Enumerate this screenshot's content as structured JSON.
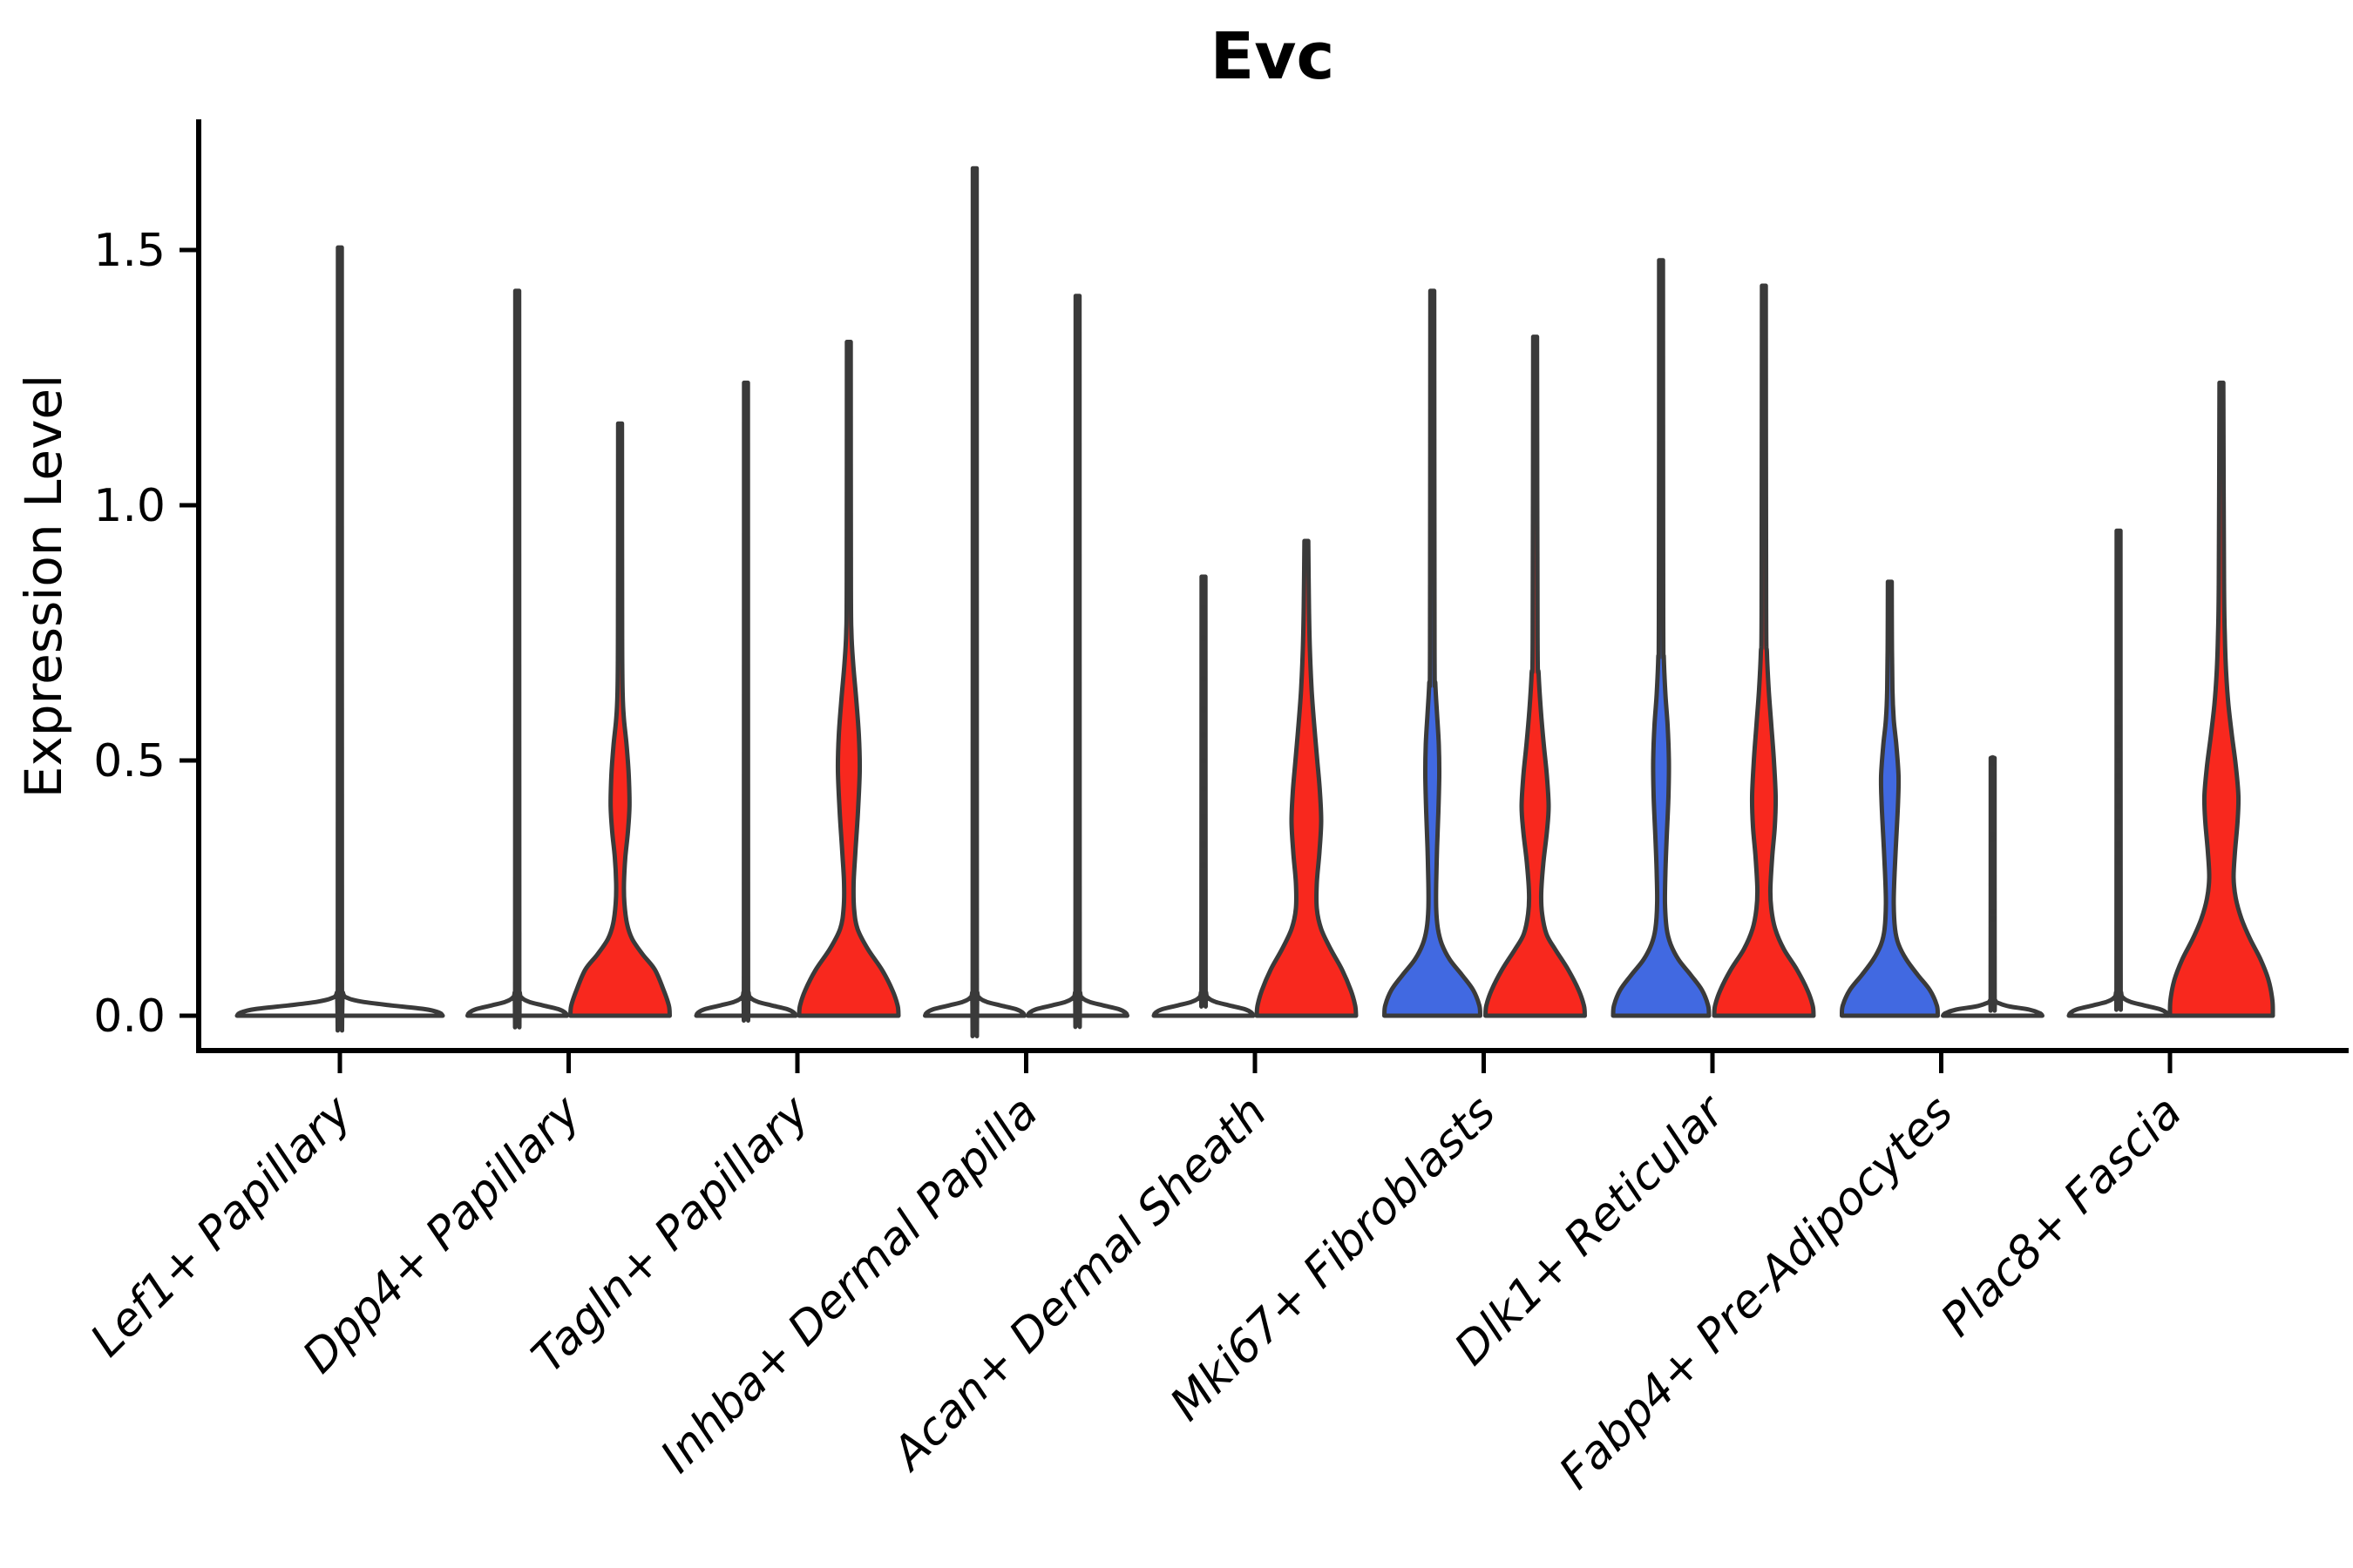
{
  "title": "Evc",
  "axes": {
    "ylabel": "Expression Level",
    "yticks": [
      {
        "label": "0.0",
        "value": 0.0
      },
      {
        "label": "0.5",
        "value": 0.5
      },
      {
        "label": "1.0",
        "value": 1.0
      },
      {
        "label": "1.5",
        "value": 1.5
      }
    ]
  },
  "colors": {
    "red": "#f8281e",
    "blue": "#4169e1",
    "white": "#ffffff",
    "outline": "#3a3a3a",
    "axis": "#000000"
  },
  "chart_data": {
    "type": "violin",
    "title": "Evc",
    "xlabel": "",
    "ylabel": "Expression Level",
    "ylim": [
      -0.07,
      1.82
    ],
    "yticks": [
      0.0,
      0.5,
      1.0,
      1.5
    ],
    "grid": false,
    "legend": "none",
    "categories": [
      "Lef1+ Papillary",
      "Dpp4+ Papillary",
      "Tagln+ Papillary",
      "Inhba+ Dermal Papilla",
      "Acan+ Dermal Sheath",
      "Mki67+ Fibroblasts",
      "Dlk1+ Reticular",
      "Fabp4+ Pre-Adipocytes",
      "Plac8+ Fascia"
    ],
    "violins": [
      {
        "category": "Lef1+ Papillary",
        "group": "single",
        "color": "white",
        "max": 1.505,
        "profile": [
          [
            0,
            118
          ],
          [
            0.006,
            114
          ],
          [
            0.013,
            97
          ],
          [
            0.02,
            60
          ],
          [
            0.027,
            27
          ],
          [
            0.034,
            10
          ],
          [
            0.045,
            3.5
          ],
          [
            0.09,
            2.4
          ],
          [
            1.505,
            2.2
          ]
        ],
        "points": []
      },
      {
        "category": "Dpp4+ Papillary",
        "group": "left",
        "color": "white",
        "max": 1.42,
        "profile": [
          [
            0,
            57
          ],
          [
            0.006,
            55
          ],
          [
            0.013,
            47
          ],
          [
            0.02,
            30
          ],
          [
            0.027,
            14
          ],
          [
            0.034,
            6
          ],
          [
            0.045,
            3
          ],
          [
            0.09,
            2.4
          ],
          [
            1.42,
            2.2
          ]
        ],
        "points": []
      },
      {
        "category": "Dpp4+ Papillary",
        "group": "right",
        "color": "red",
        "max": 1.16,
        "profile": [
          [
            0,
            57
          ],
          [
            0.02,
            56
          ],
          [
            0.05,
            50
          ],
          [
            0.09,
            40
          ],
          [
            0.12,
            26
          ],
          [
            0.15,
            14
          ],
          [
            0.18,
            8
          ],
          [
            0.22,
            5
          ],
          [
            0.26,
            4.5
          ],
          [
            0.31,
            6
          ],
          [
            0.36,
            9
          ],
          [
            0.41,
            10.8
          ],
          [
            0.47,
            10
          ],
          [
            0.53,
            7.5
          ],
          [
            0.58,
            4.5
          ],
          [
            0.63,
            3
          ],
          [
            0.75,
            2.4
          ],
          [
            1.16,
            2.2
          ]
        ],
        "points": []
      },
      {
        "category": "Tagln+ Papillary",
        "group": "left",
        "color": "white",
        "max": 1.24,
        "profile": [
          [
            0,
            57
          ],
          [
            0.006,
            55
          ],
          [
            0.013,
            47
          ],
          [
            0.02,
            30
          ],
          [
            0.027,
            14
          ],
          [
            0.034,
            6
          ],
          [
            0.045,
            3
          ],
          [
            0.09,
            2.4
          ],
          [
            1.24,
            2.2
          ]
        ],
        "points": []
      },
      {
        "category": "Tagln+ Papillary",
        "group": "right",
        "color": "red",
        "max": 1.32,
        "profile": [
          [
            0,
            57
          ],
          [
            0.02,
            56
          ],
          [
            0.05,
            50
          ],
          [
            0.09,
            38
          ],
          [
            0.13,
            22
          ],
          [
            0.17,
            10
          ],
          [
            0.21,
            6
          ],
          [
            0.26,
            5.5
          ],
          [
            0.32,
            7.5
          ],
          [
            0.4,
            10.5
          ],
          [
            0.48,
            12.5
          ],
          [
            0.55,
            11.5
          ],
          [
            0.62,
            8.5
          ],
          [
            0.69,
            5
          ],
          [
            0.75,
            3
          ],
          [
            0.85,
            2.4
          ],
          [
            1.32,
            2.2
          ]
        ],
        "points": []
      },
      {
        "category": "Inhba+ Dermal Papilla",
        "group": "left",
        "color": "white",
        "max": 1.66,
        "profile": [
          [
            0,
            57
          ],
          [
            0.006,
            55
          ],
          [
            0.013,
            47
          ],
          [
            0.02,
            30
          ],
          [
            0.027,
            14
          ],
          [
            0.034,
            6
          ],
          [
            0.045,
            3
          ],
          [
            0.09,
            2.4
          ],
          [
            1.66,
            2.2
          ]
        ],
        "points": []
      },
      {
        "category": "Inhba+ Dermal Papilla",
        "group": "right",
        "color": "white",
        "max": 1.41,
        "profile": [
          [
            0,
            57
          ],
          [
            0.006,
            55
          ],
          [
            0.013,
            47
          ],
          [
            0.02,
            30
          ],
          [
            0.027,
            14
          ],
          [
            0.034,
            6
          ],
          [
            0.045,
            3
          ],
          [
            0.09,
            2.4
          ],
          [
            1.41,
            2.2
          ]
        ],
        "points": []
      },
      {
        "category": "Acan+ Dermal Sheath",
        "group": "left",
        "color": "white",
        "max": 0.86,
        "profile": [
          [
            0,
            57
          ],
          [
            0.006,
            55
          ],
          [
            0.013,
            47
          ],
          [
            0.02,
            30
          ],
          [
            0.027,
            14
          ],
          [
            0.034,
            6
          ],
          [
            0.045,
            3
          ],
          [
            0.09,
            2.4
          ],
          [
            0.86,
            2.2
          ]
        ],
        "points": [
          0.8,
          0.74,
          0.66,
          0.6,
          0.55,
          0.5,
          0.445,
          0.39,
          0.335,
          0.295
        ]
      },
      {
        "category": "Acan+ Dermal Sheath",
        "group": "right",
        "color": "red",
        "max": 0.93,
        "profile": [
          [
            0,
            57
          ],
          [
            0.02,
            56
          ],
          [
            0.05,
            51
          ],
          [
            0.09,
            41
          ],
          [
            0.13,
            28
          ],
          [
            0.17,
            17
          ],
          [
            0.21,
            12
          ],
          [
            0.26,
            12
          ],
          [
            0.32,
            15
          ],
          [
            0.38,
            17
          ],
          [
            0.44,
            15.5
          ],
          [
            0.5,
            12.5
          ],
          [
            0.57,
            9
          ],
          [
            0.64,
            6
          ],
          [
            0.72,
            4
          ],
          [
            0.8,
            3
          ],
          [
            0.93,
            2.2
          ]
        ],
        "points": []
      },
      {
        "category": "Mki67+ Fibroblasts",
        "group": "left",
        "color": "blue",
        "max": 1.42,
        "profile": [
          [
            0,
            55
          ],
          [
            0.02,
            54
          ],
          [
            0.05,
            47
          ],
          [
            0.08,
            34
          ],
          [
            0.11,
            20
          ],
          [
            0.14,
            11
          ],
          [
            0.17,
            6.5
          ],
          [
            0.21,
            4.5
          ],
          [
            0.26,
            4.5
          ],
          [
            0.33,
            5.5
          ],
          [
            0.4,
            7
          ],
          [
            0.47,
            8
          ],
          [
            0.53,
            7.5
          ],
          [
            0.59,
            5.5
          ],
          [
            0.65,
            3.5
          ],
          [
            0.72,
            2.6
          ],
          [
            1.42,
            2.2
          ]
        ],
        "points": []
      },
      {
        "category": "Mki67+ Fibroblasts",
        "group": "right",
        "color": "red",
        "max": 1.33,
        "profile": [
          [
            0,
            57
          ],
          [
            0.02,
            56
          ],
          [
            0.05,
            50
          ],
          [
            0.09,
            38
          ],
          [
            0.13,
            23
          ],
          [
            0.16,
            13
          ],
          [
            0.2,
            8
          ],
          [
            0.24,
            7
          ],
          [
            0.3,
            9.5
          ],
          [
            0.36,
            13.5
          ],
          [
            0.41,
            15.5
          ],
          [
            0.47,
            13.5
          ],
          [
            0.53,
            10
          ],
          [
            0.6,
            6.5
          ],
          [
            0.67,
            4
          ],
          [
            0.74,
            2.8
          ],
          [
            1.33,
            2.2
          ]
        ],
        "points": []
      },
      {
        "category": "Dlk1+ Reticular",
        "group": "left",
        "color": "blue",
        "max": 1.48,
        "profile": [
          [
            0,
            55
          ],
          [
            0.02,
            54
          ],
          [
            0.05,
            47
          ],
          [
            0.08,
            34
          ],
          [
            0.11,
            20
          ],
          [
            0.14,
            11
          ],
          [
            0.17,
            6.5
          ],
          [
            0.22,
            4.5
          ],
          [
            0.28,
            5
          ],
          [
            0.35,
            6.5
          ],
          [
            0.43,
            8.5
          ],
          [
            0.5,
            9
          ],
          [
            0.57,
            7.5
          ],
          [
            0.63,
            5
          ],
          [
            0.7,
            3.2
          ],
          [
            0.78,
            2.5
          ],
          [
            1.48,
            2.2
          ]
        ],
        "points": []
      },
      {
        "category": "Dlk1+ Reticular",
        "group": "right",
        "color": "red",
        "max": 1.43,
        "profile": [
          [
            0,
            57
          ],
          [
            0.02,
            56
          ],
          [
            0.05,
            50
          ],
          [
            0.09,
            38
          ],
          [
            0.13,
            23
          ],
          [
            0.17,
            13
          ],
          [
            0.21,
            8.5
          ],
          [
            0.25,
            7.5
          ],
          [
            0.31,
            9.5
          ],
          [
            0.37,
            12.5
          ],
          [
            0.43,
            13.5
          ],
          [
            0.5,
            11.5
          ],
          [
            0.57,
            8.5
          ],
          [
            0.64,
            5.5
          ],
          [
            0.71,
            3.5
          ],
          [
            0.8,
            2.6
          ],
          [
            1.43,
            2.2
          ]
        ],
        "points": []
      },
      {
        "category": "Fabp4+ Pre-Adipocytes",
        "group": "left",
        "color": "blue",
        "max": 0.85,
        "profile": [
          [
            0,
            55
          ],
          [
            0.02,
            54
          ],
          [
            0.05,
            46
          ],
          [
            0.08,
            32
          ],
          [
            0.11,
            19
          ],
          [
            0.14,
            10
          ],
          [
            0.17,
            6
          ],
          [
            0.22,
            4.5
          ],
          [
            0.28,
            5.5
          ],
          [
            0.35,
            7.5
          ],
          [
            0.42,
            9.5
          ],
          [
            0.47,
            10
          ],
          [
            0.53,
            7.5
          ],
          [
            0.58,
            4.5
          ],
          [
            0.64,
            3
          ],
          [
            0.74,
            2.4
          ],
          [
            0.85,
            2.2
          ]
        ],
        "points": []
      },
      {
        "category": "Fabp4+ Pre-Adipocytes",
        "group": "right",
        "color": "white",
        "max": 0.505,
        "profile": [
          [
            0,
            57
          ],
          [
            0.005,
            54
          ],
          [
            0.012,
            42
          ],
          [
            0.018,
            20
          ],
          [
            0.024,
            8
          ],
          [
            0.03,
            3
          ],
          [
            0.05,
            2.3
          ],
          [
            0.505,
            2.2
          ]
        ],
        "points": [
          0.505,
          0.495,
          0.355,
          0.345,
          0.205,
          0.19
        ]
      },
      {
        "category": "Plac8+ Fascia",
        "group": "left",
        "color": "white",
        "max": 0.95,
        "profile": [
          [
            0,
            57
          ],
          [
            0.006,
            55
          ],
          [
            0.013,
            47
          ],
          [
            0.02,
            30
          ],
          [
            0.027,
            14
          ],
          [
            0.034,
            6
          ],
          [
            0.045,
            3
          ],
          [
            0.09,
            2.4
          ],
          [
            0.95,
            2.2
          ]
        ],
        "points": [
          0.615,
          0.565,
          0.53,
          0.5,
          0.47,
          0.44,
          0.41,
          0.38,
          0.335,
          0.3
        ]
      },
      {
        "category": "Plac8+ Fascia",
        "group": "right",
        "color": "red",
        "max": 1.24,
        "profile": [
          [
            0,
            59
          ],
          [
            0.03,
            58.5
          ],
          [
            0.07,
            54
          ],
          [
            0.11,
            45
          ],
          [
            0.15,
            33
          ],
          [
            0.19,
            23
          ],
          [
            0.23,
            16.5
          ],
          [
            0.27,
            14
          ],
          [
            0.32,
            15.5
          ],
          [
            0.38,
            18.5
          ],
          [
            0.43,
            19.5
          ],
          [
            0.49,
            16.5
          ],
          [
            0.55,
            12
          ],
          [
            0.61,
            8
          ],
          [
            0.67,
            5.5
          ],
          [
            0.74,
            4
          ],
          [
            0.85,
            3
          ],
          [
            1.24,
            2.2
          ]
        ],
        "points": []
      }
    ]
  }
}
